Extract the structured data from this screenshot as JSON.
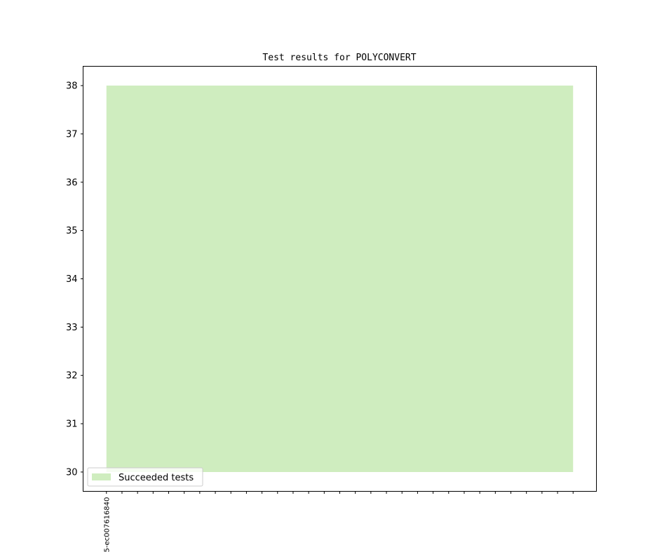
{
  "chart_data": {
    "type": "area",
    "title": "Test results for POLYCONVERT",
    "xlabel": "",
    "ylabel": "",
    "x_tick_labels": [
      "5-ec007616840"
    ],
    "x_tick_count": 31,
    "xlim": [
      -1.5,
      31.5
    ],
    "ylim": [
      29.6,
      38.4
    ],
    "y_ticks": [
      30,
      31,
      32,
      33,
      34,
      35,
      36,
      37,
      38
    ],
    "baseline": 30,
    "series": [
      {
        "name": "Succeeded tests",
        "color": "#cfedbf",
        "values": [
          38,
          38,
          38,
          38,
          38,
          38,
          38,
          38,
          38,
          38,
          38,
          38,
          38,
          38,
          38,
          38,
          38,
          38,
          38,
          38,
          38,
          38,
          38,
          38,
          38,
          38,
          38,
          38,
          38,
          38,
          38
        ]
      }
    ],
    "grid": false,
    "legend": "lower-left"
  }
}
